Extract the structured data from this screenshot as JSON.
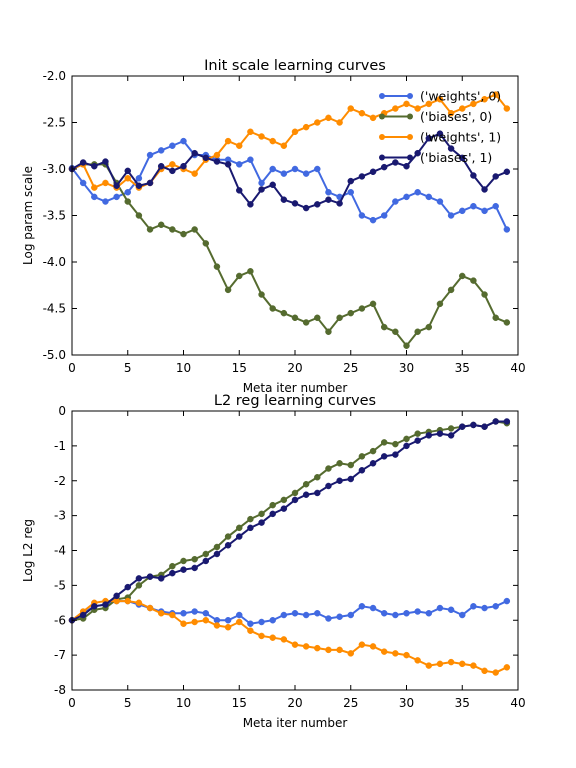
{
  "chart_data": [
    {
      "type": "line",
      "title": "Init scale learning curves",
      "xlabel": "Meta iter number",
      "ylabel": "Log param scale",
      "xlim": [
        0,
        40
      ],
      "ylim": [
        -5.0,
        -2.0
      ],
      "xticks": [
        0,
        5,
        10,
        15,
        20,
        25,
        30,
        35,
        40
      ],
      "xtick_labels": [
        "0",
        "5",
        "10",
        "15",
        "20",
        "25",
        "30",
        "35",
        "40"
      ],
      "yticks": [
        -5.0,
        -4.5,
        -4.0,
        -3.5,
        -3.0,
        -2.5,
        -2.0
      ],
      "ytick_labels": [
        "-5.0",
        "-4.5",
        "-4.0",
        "-3.5",
        "-3.0",
        "-2.5",
        "-2.0"
      ],
      "grid": false,
      "legend_position": "top-right",
      "x": [
        0,
        1,
        2,
        3,
        4,
        5,
        6,
        7,
        8,
        9,
        10,
        11,
        12,
        13,
        14,
        15,
        16,
        17,
        18,
        19,
        20,
        21,
        22,
        23,
        24,
        25,
        26,
        27,
        28,
        29,
        30,
        31,
        32,
        33,
        34,
        35,
        36,
        37,
        38,
        39
      ],
      "series": [
        {
          "name": "('weights', 0)",
          "color": "#4169e1",
          "values": [
            -2.99,
            -3.15,
            -3.3,
            -3.35,
            -3.3,
            -3.25,
            -3.1,
            -2.85,
            -2.8,
            -2.75,
            -2.7,
            -2.85,
            -2.85,
            -2.9,
            -2.9,
            -2.95,
            -2.9,
            -3.15,
            -3.0,
            -3.05,
            -3.0,
            -3.05,
            -3.0,
            -3.25,
            -3.3,
            -3.25,
            -3.5,
            -3.55,
            -3.5,
            -3.35,
            -3.3,
            -3.25,
            -3.3,
            -3.35,
            -3.5,
            -3.45,
            -3.4,
            -3.45,
            -3.4,
            -3.65
          ]
        },
        {
          "name": "('biases', 0)",
          "color": "#556b2f",
          "values": [
            -3.0,
            -2.95,
            -2.95,
            -2.95,
            -3.15,
            -3.35,
            -3.5,
            -3.65,
            -3.6,
            -3.65,
            -3.7,
            -3.65,
            -3.8,
            -4.05,
            -4.3,
            -4.15,
            -4.1,
            -4.35,
            -4.5,
            -4.55,
            -4.6,
            -4.65,
            -4.6,
            -4.75,
            -4.6,
            -4.55,
            -4.5,
            -4.45,
            -4.7,
            -4.75,
            -4.9,
            -4.75,
            -4.7,
            -4.45,
            -4.3,
            -4.15,
            -4.2,
            -4.35,
            -4.6,
            -4.65
          ]
        },
        {
          "name": "('weights', 1)",
          "color": "#ff8c00",
          "values": [
            -3.0,
            -2.95,
            -3.2,
            -3.15,
            -3.2,
            -3.1,
            -3.2,
            -3.15,
            -3.0,
            -2.95,
            -3.0,
            -3.05,
            -2.9,
            -2.85,
            -2.7,
            -2.75,
            -2.6,
            -2.65,
            -2.7,
            -2.75,
            -2.6,
            -2.55,
            -2.5,
            -2.45,
            -2.5,
            -2.35,
            -2.4,
            -2.45,
            -2.4,
            -2.35,
            -2.3,
            -2.35,
            -2.3,
            -2.25,
            -2.4,
            -2.35,
            -2.3,
            -2.25,
            -2.2,
            -2.35
          ]
        },
        {
          "name": "('biases', 1)",
          "color": "#191970",
          "values": [
            -3.0,
            -2.93,
            -2.97,
            -2.92,
            -3.18,
            -3.02,
            -3.18,
            -3.15,
            -2.97,
            -3.02,
            -2.97,
            -2.83,
            -2.88,
            -2.92,
            -2.95,
            -3.23,
            -3.38,
            -3.22,
            -3.17,
            -3.33,
            -3.37,
            -3.42,
            -3.38,
            -3.33,
            -3.37,
            -3.13,
            -3.08,
            -3.03,
            -2.98,
            -2.93,
            -2.97,
            -2.83,
            -2.67,
            -2.62,
            -2.78,
            -2.88,
            -3.07,
            -3.22,
            -3.08,
            -3.03
          ]
        }
      ]
    },
    {
      "type": "line",
      "title": "L2 reg learning curves",
      "xlabel": "Meta iter number",
      "ylabel": "Log L2 reg",
      "xlim": [
        0,
        40
      ],
      "ylim": [
        -8,
        0
      ],
      "xticks": [
        0,
        5,
        10,
        15,
        20,
        25,
        30,
        35,
        40
      ],
      "xtick_labels": [
        "0",
        "5",
        "10",
        "15",
        "20",
        "25",
        "30",
        "35",
        "40"
      ],
      "yticks": [
        -8,
        -7,
        -6,
        -5,
        -4,
        -3,
        -2,
        -1,
        0
      ],
      "ytick_labels": [
        "-8",
        "-7",
        "-6",
        "-5",
        "-4",
        "-3",
        "-2",
        "-1",
        "0"
      ],
      "grid": false,
      "x": [
        0,
        1,
        2,
        3,
        4,
        5,
        6,
        7,
        8,
        9,
        10,
        11,
        12,
        13,
        14,
        15,
        16,
        17,
        18,
        19,
        20,
        21,
        22,
        23,
        24,
        25,
        26,
        27,
        28,
        29,
        30,
        31,
        32,
        33,
        34,
        35,
        36,
        37,
        38,
        39
      ],
      "series": [
        {
          "name": "('weights', 0)",
          "color": "#4169e1",
          "values": [
            -6.0,
            -5.8,
            -5.6,
            -5.55,
            -5.45,
            -5.45,
            -5.55,
            -5.65,
            -5.75,
            -5.8,
            -5.8,
            -5.75,
            -5.8,
            -6.0,
            -6.0,
            -5.85,
            -6.1,
            -6.05,
            -6.0,
            -5.85,
            -5.8,
            -5.85,
            -5.8,
            -5.95,
            -5.9,
            -5.85,
            -5.6,
            -5.65,
            -5.8,
            -5.85,
            -5.8,
            -5.75,
            -5.8,
            -5.65,
            -5.7,
            -5.85,
            -5.6,
            -5.65,
            -5.6,
            -5.45
          ]
        },
        {
          "name": "('biases', 0)",
          "color": "#556b2f",
          "values": [
            -6.0,
            -5.95,
            -5.7,
            -5.65,
            -5.4,
            -5.35,
            -5.0,
            -4.75,
            -4.7,
            -4.45,
            -4.3,
            -4.25,
            -4.1,
            -3.9,
            -3.6,
            -3.35,
            -3.1,
            -2.95,
            -2.7,
            -2.55,
            -2.35,
            -2.1,
            -1.9,
            -1.65,
            -1.5,
            -1.55,
            -1.3,
            -1.15,
            -0.9,
            -0.95,
            -0.8,
            -0.65,
            -0.6,
            -0.55,
            -0.5,
            -0.45,
            -0.4,
            -0.45,
            -0.3,
            -0.35
          ]
        },
        {
          "name": "('weights', 1)",
          "color": "#ff8c00",
          "values": [
            -6.0,
            -5.75,
            -5.5,
            -5.45,
            -5.45,
            -5.45,
            -5.5,
            -5.65,
            -5.8,
            -5.85,
            -6.1,
            -6.05,
            -6.0,
            -6.15,
            -6.2,
            -6.05,
            -6.3,
            -6.45,
            -6.5,
            -6.55,
            -6.7,
            -6.75,
            -6.8,
            -6.85,
            -6.85,
            -6.95,
            -6.7,
            -6.75,
            -6.9,
            -6.95,
            -7.0,
            -7.15,
            -7.3,
            -7.25,
            -7.2,
            -7.25,
            -7.3,
            -7.45,
            -7.5,
            -7.35
          ]
        },
        {
          "name": "('biases', 1)",
          "color": "#191970",
          "values": [
            -6.0,
            -5.85,
            -5.6,
            -5.55,
            -5.3,
            -5.05,
            -4.8,
            -4.75,
            -4.8,
            -4.65,
            -4.55,
            -4.5,
            -4.3,
            -4.1,
            -3.85,
            -3.6,
            -3.35,
            -3.2,
            -2.95,
            -2.8,
            -2.55,
            -2.4,
            -2.35,
            -2.15,
            -2.0,
            -1.95,
            -1.7,
            -1.5,
            -1.3,
            -1.25,
            -1.0,
            -0.85,
            -0.7,
            -0.65,
            -0.7,
            -0.45,
            -0.4,
            -0.45,
            -0.3,
            -0.3
          ]
        }
      ]
    }
  ]
}
